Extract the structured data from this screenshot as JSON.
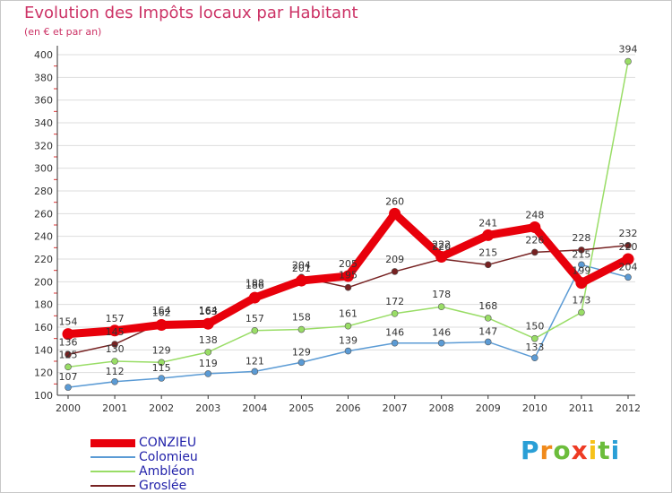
{
  "title": "Evolution des Impôts locaux par Habitant",
  "subtitle": "(en € et par an)",
  "brand": {
    "letters": [
      "P",
      "r",
      "o",
      "x",
      "i",
      "t",
      "i"
    ],
    "colors": [
      "#2a9fd6",
      "#f08a1c",
      "#6cbd3c",
      "#ee3b24",
      "#f6c21a",
      "#6cbd3c",
      "#2a9fd6"
    ]
  },
  "chart_data": {
    "type": "line",
    "title": "Evolution des Impôts locaux par Habitant",
    "subtitle": "(en € et par an)",
    "xlabel": "",
    "ylabel": "",
    "categories": [
      "2000",
      "2001",
      "2002",
      "2003",
      "2004",
      "2005",
      "2006",
      "2007",
      "2008",
      "2009",
      "2010",
      "2011",
      "2012"
    ],
    "ylim": [
      100,
      400
    ],
    "yticks": [
      "100",
      "120",
      "140",
      "160",
      "180",
      "200",
      "220",
      "240",
      "260",
      "280",
      "300",
      "320",
      "340",
      "360",
      "380",
      "400"
    ],
    "legend_position": "bottom-left",
    "series": [
      {
        "name": "CONZIEU",
        "color": "#e8000b",
        "values": [
          154,
          157,
          162,
          163,
          186,
          201,
          205,
          260,
          222,
          241,
          248,
          199,
          220
        ]
      },
      {
        "name": "Colomieu",
        "color": "#5b9bd5",
        "values": [
          107,
          112,
          115,
          119,
          121,
          129,
          139,
          146,
          146,
          147,
          133,
          215,
          204
        ]
      },
      {
        "name": "Ambléon",
        "color": "#99dd66",
        "values": [
          125,
          130,
          129,
          138,
          157,
          158,
          161,
          172,
          178,
          168,
          150,
          173,
          394
        ]
      },
      {
        "name": "Groslée",
        "color": "#772222",
        "values": [
          136,
          145,
          164,
          164,
          188,
          204,
          195,
          209,
          220,
          215,
          226,
          228,
          232
        ]
      }
    ]
  }
}
